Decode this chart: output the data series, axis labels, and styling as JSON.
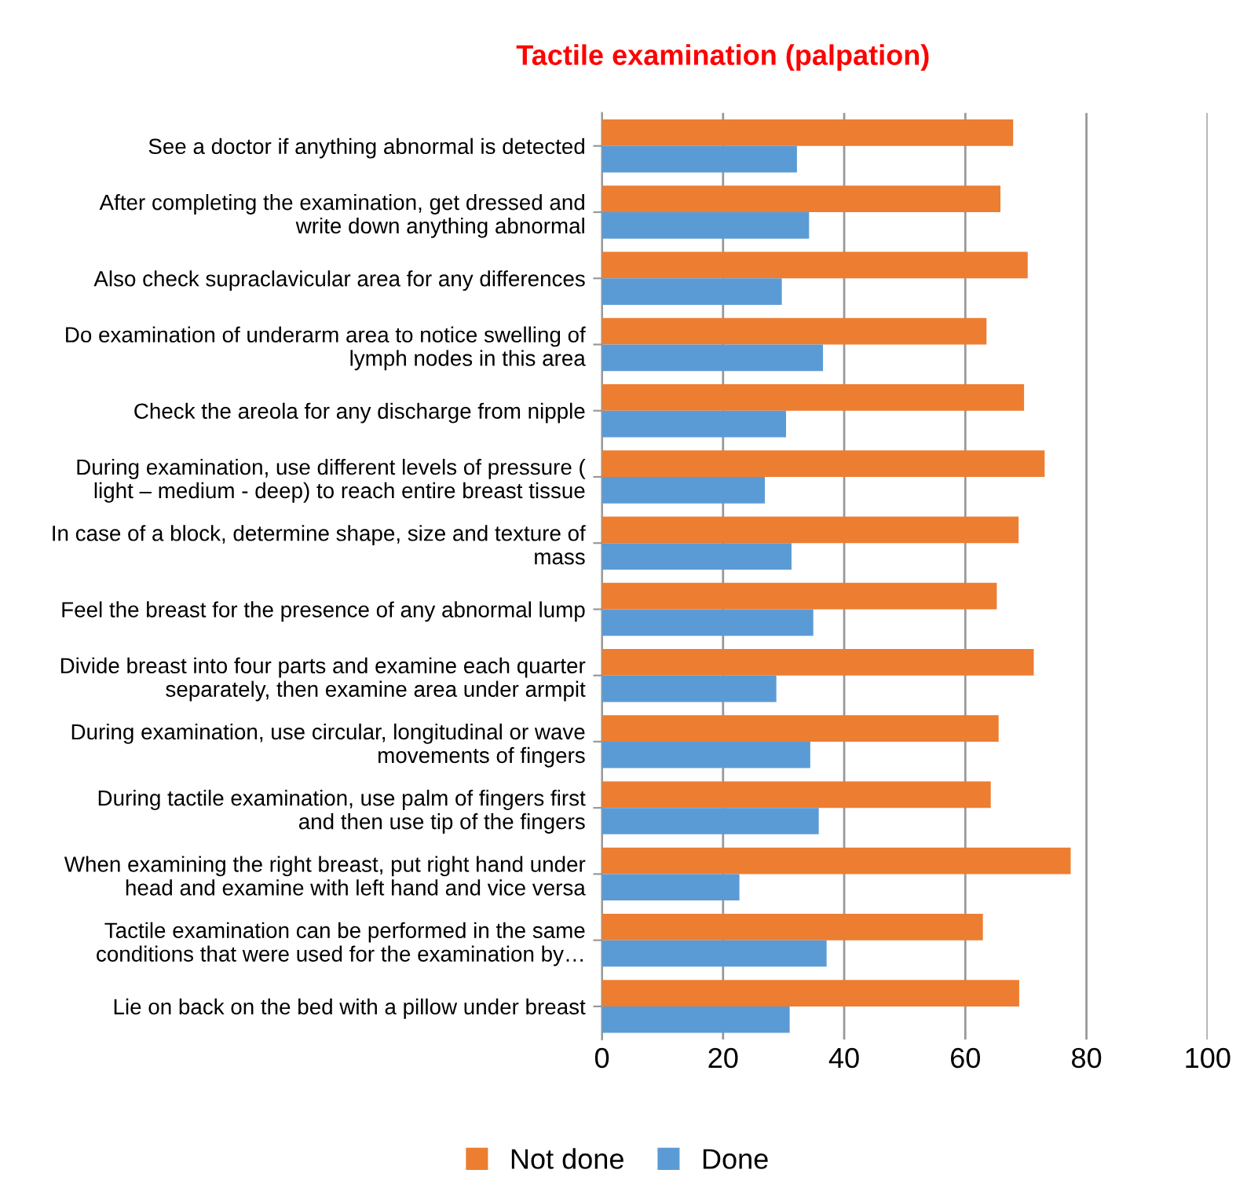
{
  "chart_data": {
    "type": "bar",
    "orientation": "horizontal",
    "title": "Tactile examination (palpation)",
    "categories": [
      "See a doctor if anything abnormal is detected",
      "After completing the examination, get dressed and\nwrite down anything abnormal",
      "Also check supraclavicular area for any differences",
      "Do examination of underarm area to notice swelling of\nlymph nodes in this area",
      "Check the areola for any discharge from nipple",
      "During examination, use different levels of pressure (\nlight – medium - deep) to reach entire breast tissue",
      "In case of a block, determine shape, size and texture of\nmass",
      "Feel the breast for the presence of any abnormal lump",
      "Divide breast into four parts and examine each quarter\nseparately, then examine area under armpit",
      "During examination, use circular, longitudinal or wave\nmovements of fingers",
      "During tactile examination, use palm of fingers first\nand then use tip of the fingers",
      "When examining the right breast, put right hand under\nhead and examine with left hand and vice versa",
      "Tactile examination can be performed in the same\nconditions that were used for the examination by…",
      "Lie on back on the bed with a pillow under breast"
    ],
    "series": [
      {
        "name": "Not done",
        "color": "#ed7d31",
        "values": [
          67.9,
          65.8,
          70.3,
          63.5,
          69.7,
          73.1,
          68.8,
          65.2,
          71.3,
          65.5,
          64.2,
          77.4,
          62.9,
          68.9
        ]
      },
      {
        "name": "Done",
        "color": "#5b9bd5",
        "values": [
          32.2,
          34.2,
          29.7,
          36.5,
          30.4,
          26.9,
          31.3,
          34.9,
          28.8,
          34.4,
          35.8,
          22.7,
          37.1,
          31.0
        ]
      }
    ],
    "xlim": [
      0,
      100
    ],
    "xticks": [
      0,
      20,
      40,
      60,
      80,
      100
    ],
    "grid": "x",
    "legend": "bottom"
  }
}
